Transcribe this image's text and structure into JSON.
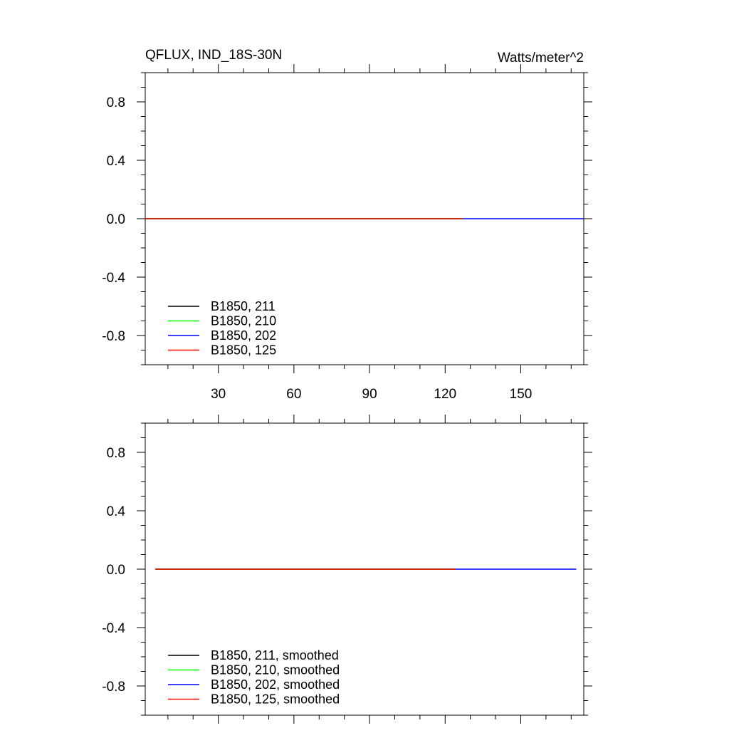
{
  "chart_data": [
    {
      "type": "line",
      "title": "QFLUX, IND_18S-30N",
      "units_label": "Watts/meter^2",
      "xlim": [
        1,
        175
      ],
      "ylim": [
        -1.0,
        1.0
      ],
      "x_tick_labels": [
        "30",
        "60",
        "90",
        "120",
        "150"
      ],
      "x_ticks": [
        30,
        60,
        90,
        120,
        150
      ],
      "y_tick_labels": [
        "0.8",
        "0.4",
        "0.0",
        "-0.4",
        "-0.8"
      ],
      "y_ticks": [
        0.8,
        0.4,
        0.0,
        -0.4,
        -0.8
      ],
      "grid": false,
      "legend_position": "bottom-left",
      "series": [
        {
          "name": "B1850, 211",
          "color": "#000000",
          "x": [
            1,
            127
          ],
          "y": [
            0.0,
            0.0
          ]
        },
        {
          "name": "B1850, 210",
          "color": "#00ff00",
          "x": [
            1,
            127
          ],
          "y": [
            0.0,
            0.0
          ]
        },
        {
          "name": "B1850, 202",
          "color": "#0000ff",
          "x": [
            1,
            175
          ],
          "y": [
            0.0,
            0.0
          ]
        },
        {
          "name": "B1850, 125",
          "color": "#ff0000",
          "x": [
            1,
            127
          ],
          "y": [
            0.0,
            0.0
          ]
        }
      ]
    },
    {
      "type": "line",
      "title": "",
      "units_label": "",
      "xlim": [
        1,
        175
      ],
      "ylim": [
        -1.0,
        1.0
      ],
      "x_tick_labels": [],
      "x_ticks": [
        30,
        60,
        90,
        120,
        150
      ],
      "y_tick_labels": [
        "0.8",
        "0.4",
        "0.0",
        "-0.4",
        "-0.8"
      ],
      "y_ticks": [
        0.8,
        0.4,
        0.0,
        -0.4,
        -0.8
      ],
      "grid": false,
      "legend_position": "bottom-left",
      "series": [
        {
          "name": "B1850, 211, smoothed",
          "color": "#000000",
          "x": [
            5,
            124
          ],
          "y": [
            0.0,
            0.0
          ]
        },
        {
          "name": "B1850, 210, smoothed",
          "color": "#00ff00",
          "x": [
            5,
            124
          ],
          "y": [
            0.0,
            0.0
          ]
        },
        {
          "name": "B1850, 202, smoothed",
          "color": "#0000ff",
          "x": [
            5,
            172
          ],
          "y": [
            0.0,
            0.0
          ]
        },
        {
          "name": "B1850, 125, smoothed",
          "color": "#ff0000",
          "x": [
            5,
            124
          ],
          "y": [
            0.0,
            0.0
          ]
        }
      ]
    }
  ]
}
